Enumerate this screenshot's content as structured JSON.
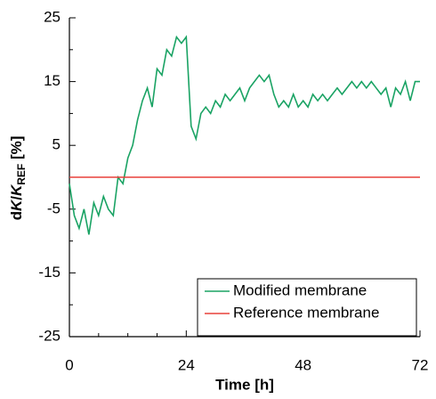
{
  "chart_data": {
    "type": "line",
    "xlabel": "Time [h]",
    "ylabel": [
      "d",
      "K",
      "/",
      "K",
      "REF",
      " [%]"
    ],
    "xlim": [
      0,
      72
    ],
    "xticks": [
      0,
      24,
      48,
      72
    ],
    "xminorticks": [
      6,
      12,
      18,
      30,
      36,
      42,
      54,
      60,
      66
    ],
    "ylim": [
      -25,
      25
    ],
    "yticks": [
      -25,
      -15,
      -5,
      5,
      15,
      25
    ],
    "yminorticks": [
      -20,
      -10,
      0,
      10,
      20
    ],
    "legend": "lower right",
    "series": [
      {
        "name": "Modified membrane",
        "color": "#1aa364",
        "x": [
          0,
          1,
          2,
          3,
          4,
          5,
          6,
          7,
          8,
          9,
          10,
          11,
          12,
          13,
          14,
          15,
          16,
          17,
          18,
          19,
          20,
          21,
          22,
          23,
          24,
          25,
          26,
          27,
          28,
          29,
          30,
          31,
          32,
          33,
          34,
          35,
          36,
          37,
          38,
          39,
          40,
          41,
          42,
          43,
          44,
          45,
          46,
          47,
          48,
          49,
          50,
          51,
          52,
          53,
          54,
          55,
          56,
          57,
          58,
          59,
          60,
          61,
          62,
          63,
          64,
          65,
          66,
          67,
          68,
          69,
          70,
          71,
          72
        ],
        "values": [
          -1,
          -6,
          -8,
          -5,
          -9,
          -4,
          -6,
          -3,
          -5,
          -6,
          0,
          -1,
          3,
          5,
          9,
          12,
          14,
          11,
          17,
          16,
          20,
          19,
          22,
          21,
          22,
          8,
          6,
          10,
          11,
          10,
          12,
          11,
          13,
          12,
          13,
          14,
          12,
          14,
          15,
          16,
          15,
          16,
          13,
          11,
          12,
          11,
          13,
          11,
          12,
          11,
          13,
          12,
          13,
          12,
          13,
          14,
          13,
          14,
          15,
          14,
          15,
          14,
          15,
          14,
          13,
          14,
          11,
          14,
          13,
          15,
          12,
          15,
          15
        ]
      },
      {
        "name": "Reference membrane",
        "color": "#e8403a",
        "x": [
          0,
          72
        ],
        "values": [
          0,
          0
        ]
      }
    ]
  }
}
